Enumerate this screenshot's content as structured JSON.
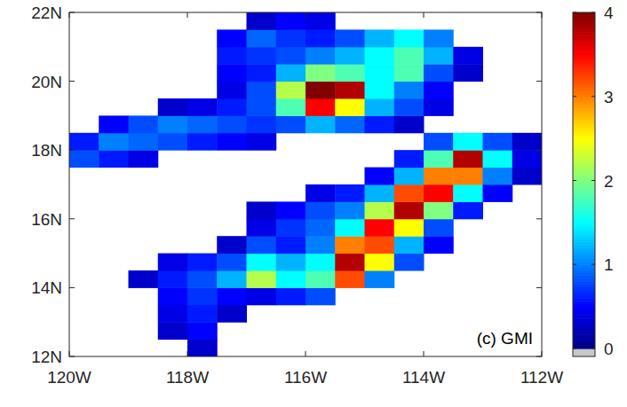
{
  "chart_data": {
    "type": "heatmap",
    "annotation": "(c) GMI",
    "x": [
      -119.75,
      -119.25,
      -118.75,
      -118.25,
      -117.75,
      -117.25,
      -116.75,
      -116.25,
      -115.75,
      -115.25,
      -114.75,
      -114.25,
      -113.75,
      -113.25,
      -112.75,
      -112.25
    ],
    "y": [
      12.25,
      12.75,
      13.25,
      13.75,
      14.25,
      14.75,
      15.25,
      15.75,
      16.25,
      16.75,
      17.25,
      17.75,
      18.25,
      18.75,
      19.25,
      19.75,
      20.25,
      20.75,
      21.25,
      21.75
    ],
    "cells": [
      [
        null,
        null,
        null,
        null,
        0.3,
        null,
        null,
        null,
        null,
        null,
        null,
        null,
        null,
        null,
        null,
        null
      ],
      [
        null,
        null,
        null,
        0.3,
        0.5,
        null,
        null,
        null,
        null,
        null,
        null,
        null,
        null,
        null,
        null,
        null
      ],
      [
        null,
        null,
        null,
        0.4,
        0.6,
        0.3,
        null,
        null,
        null,
        null,
        null,
        null,
        null,
        null,
        null,
        null
      ],
      [
        null,
        null,
        null,
        0.5,
        0.7,
        0.5,
        0.4,
        0.6,
        0.8,
        null,
        null,
        null,
        null,
        null,
        null,
        null
      ],
      [
        null,
        null,
        0.3,
        0.6,
        0.8,
        1.2,
        2.2,
        1.5,
        1.8,
        3.2,
        1.0,
        null,
        null,
        null,
        null,
        null
      ],
      [
        null,
        null,
        null,
        0.4,
        0.6,
        0.8,
        1.5,
        1.2,
        1.5,
        3.8,
        2.5,
        0.8,
        null,
        null,
        null,
        null
      ],
      [
        null,
        null,
        null,
        null,
        null,
        0.3,
        0.8,
        0.6,
        1.0,
        3.0,
        3.2,
        1.2,
        0.5,
        null,
        null,
        null
      ],
      [
        null,
        null,
        null,
        null,
        null,
        null,
        0.4,
        0.7,
        0.9,
        1.5,
        3.5,
        2.5,
        0.8,
        null,
        null,
        null
      ],
      [
        null,
        null,
        null,
        null,
        null,
        null,
        0.3,
        0.5,
        0.8,
        1.0,
        2.2,
        3.8,
        2.0,
        0.6,
        null,
        null
      ],
      [
        null,
        null,
        null,
        null,
        null,
        null,
        null,
        null,
        0.4,
        0.6,
        1.2,
        3.2,
        3.5,
        1.5,
        0.5,
        null
      ],
      [
        null,
        null,
        null,
        null,
        null,
        null,
        null,
        null,
        null,
        null,
        0.5,
        1.2,
        3.0,
        3.0,
        1.0,
        0.3
      ],
      [
        0.8,
        0.6,
        0.4,
        null,
        null,
        null,
        null,
        null,
        null,
        null,
        null,
        0.6,
        1.8,
        3.8,
        1.5,
        0.4
      ],
      [
        0.6,
        1.0,
        0.9,
        0.8,
        0.6,
        0.5,
        0.4,
        null,
        null,
        null,
        null,
        null,
        0.8,
        1.5,
        0.8,
        0.3
      ],
      [
        null,
        0.5,
        0.8,
        1.0,
        0.9,
        0.8,
        0.7,
        0.8,
        1.2,
        0.9,
        0.6,
        0.3,
        null,
        null,
        null,
        null
      ],
      [
        null,
        null,
        null,
        0.3,
        0.4,
        0.6,
        0.8,
        1.8,
        3.5,
        2.5,
        1.2,
        0.8,
        0.4,
        null,
        null,
        null
      ],
      [
        null,
        null,
        null,
        null,
        null,
        0.4,
        0.8,
        2.2,
        4.0,
        3.8,
        1.5,
        1.0,
        0.5,
        null,
        null,
        null
      ],
      [
        null,
        null,
        null,
        null,
        null,
        0.5,
        0.6,
        1.2,
        2.0,
        1.8,
        1.5,
        1.8,
        0.8,
        0.3,
        null,
        null
      ],
      [
        null,
        null,
        null,
        null,
        null,
        0.6,
        0.7,
        0.8,
        1.0,
        1.2,
        1.5,
        1.8,
        1.2,
        0.4,
        null,
        null
      ],
      [
        null,
        null,
        null,
        null,
        null,
        0.5,
        0.9,
        0.7,
        0.6,
        0.8,
        1.2,
        1.5,
        1.0,
        null,
        null,
        null
      ],
      [
        null,
        null,
        null,
        null,
        null,
        null,
        0.3,
        0.5,
        0.4,
        null,
        null,
        null,
        null,
        null,
        null,
        null
      ]
    ],
    "xlim": [
      -120,
      -112
    ],
    "ylim": [
      12,
      22
    ],
    "xticks": [
      {
        "value": -120,
        "label": "120W"
      },
      {
        "value": -118,
        "label": "118W"
      },
      {
        "value": -116,
        "label": "116W"
      },
      {
        "value": -114,
        "label": "114W"
      },
      {
        "value": -112,
        "label": "112W"
      }
    ],
    "yticks": [
      {
        "value": 12,
        "label": "12N"
      },
      {
        "value": 14,
        "label": "14N"
      },
      {
        "value": 16,
        "label": "16N"
      },
      {
        "value": 18,
        "label": "18N"
      },
      {
        "value": 20,
        "label": "20N"
      },
      {
        "value": 22,
        "label": "22N"
      }
    ],
    "colorbar_range": [
      0,
      4
    ],
    "colorbar_ticks": [
      0,
      1,
      2,
      3,
      4
    ]
  }
}
